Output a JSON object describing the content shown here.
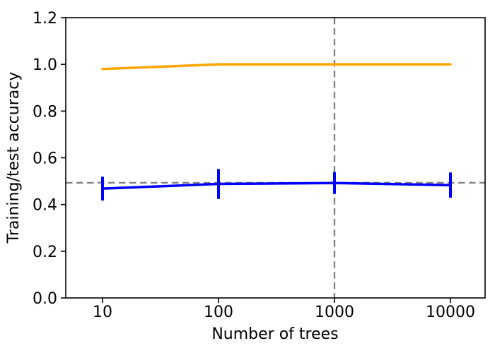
{
  "chart_data": {
    "type": "line",
    "title": "",
    "xlabel": "Number of trees",
    "ylabel": "Training/test accuracy",
    "x_scale": "log",
    "x": [
      10,
      100,
      1000,
      10000
    ],
    "series": [
      {
        "name": "training accuracy",
        "color": "#FFA500",
        "values": [
          0.98,
          1.0,
          1.0,
          1.0
        ],
        "yerr": null
      },
      {
        "name": "test accuracy",
        "color": "#0000FF",
        "values": [
          0.468,
          0.488,
          0.492,
          0.483
        ],
        "yerr": [
          0.051,
          0.064,
          0.047,
          0.054
        ]
      }
    ],
    "reference_lines": [
      {
        "orientation": "horizontal",
        "value": 0.493,
        "color": "#808080",
        "style": "dashed"
      },
      {
        "orientation": "vertical",
        "value": 1000,
        "color": "#808080",
        "style": "dashed"
      }
    ],
    "xticks": [
      10,
      100,
      1000,
      10000
    ],
    "xtick_labels": [
      "10",
      "100",
      "1000",
      "10000"
    ],
    "yticks": [
      0.0,
      0.2,
      0.4,
      0.6,
      0.8,
      1.0,
      1.2
    ],
    "ytick_labels": [
      "0.0",
      "0.2",
      "0.4",
      "0.6",
      "0.8",
      "1.0",
      "1.2"
    ],
    "ylim": [
      0.0,
      1.2
    ],
    "grid": false,
    "legend": null,
    "colors": {
      "background": "#FFFFFF",
      "spines": "#000000",
      "tick_text": "#000000"
    }
  }
}
